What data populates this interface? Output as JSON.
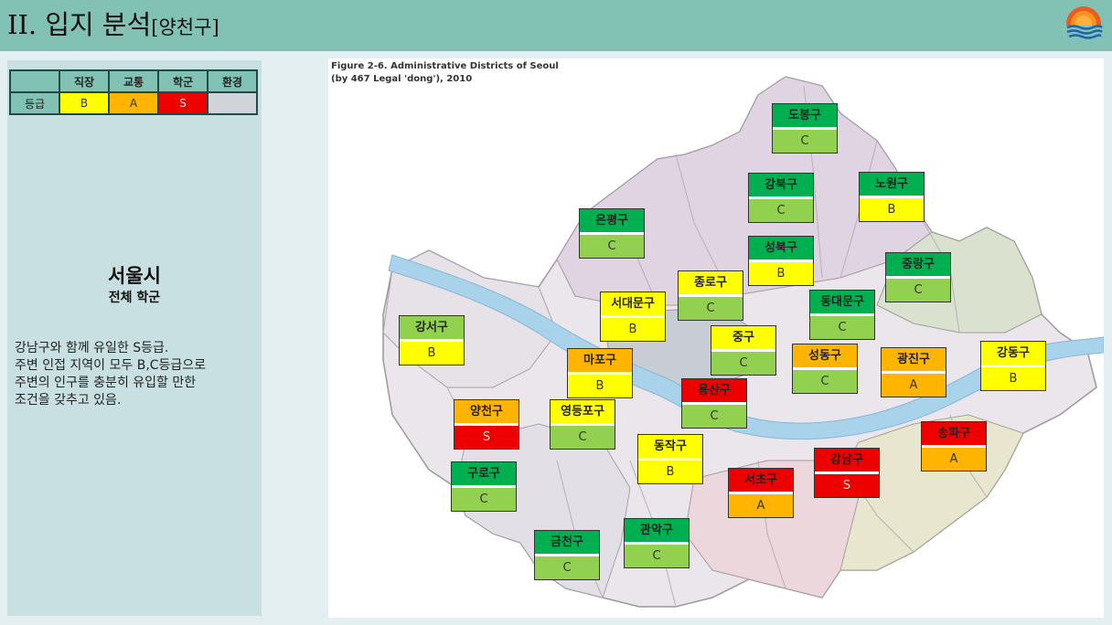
{
  "header": {
    "title_main": "II. 입지 분석",
    "title_sub": "[양천구]"
  },
  "colors": {
    "S": "#ee0000",
    "A": "#ffb400",
    "B": "#ffff00",
    "C": "#92d050",
    "G": "#00b050",
    "blank": "#d0d3d8"
  },
  "grade_table": {
    "headers": [
      "",
      "직장",
      "교통",
      "학군",
      "환경"
    ],
    "row_label": "등급",
    "values": [
      "B",
      "A",
      "S",
      ""
    ]
  },
  "left": {
    "city": "서울시",
    "subtitle": "전체 학군",
    "desc": [
      "강남구와 함께 유일한 S등급.",
      "주변 인접 지역이 모두 B,C등급으로",
      "주변의 인구를 충분히 유입할 만한",
      "조건을 갖추고 있음."
    ]
  },
  "map": {
    "caption": [
      "Figure 2-6. Administrative Districts of Seoul",
      "(by 467 Legal 'dong'), 2010"
    ]
  },
  "districts": [
    {
      "name": "도봉구",
      "grade": "C",
      "top": "G"
    },
    {
      "name": "강북구",
      "grade": "C",
      "top": "G"
    },
    {
      "name": "노원구",
      "grade": "B",
      "top": "G"
    },
    {
      "name": "은평구",
      "grade": "C",
      "top": "G"
    },
    {
      "name": "성북구",
      "grade": "B",
      "top": "G"
    },
    {
      "name": "중랑구",
      "grade": "C",
      "top": "G"
    },
    {
      "name": "종로구",
      "grade": "C",
      "top": "B"
    },
    {
      "name": "서대문구",
      "grade": "B",
      "top": "B"
    },
    {
      "name": "동대문구",
      "grade": "C",
      "top": "G"
    },
    {
      "name": "강서구",
      "grade": "B",
      "top": "C"
    },
    {
      "name": "중구",
      "grade": "C",
      "top": "B"
    },
    {
      "name": "마포구",
      "grade": "B",
      "top": "A"
    },
    {
      "name": "성동구",
      "grade": "C",
      "top": "A"
    },
    {
      "name": "광진구",
      "grade": "A",
      "top": "A"
    },
    {
      "name": "강동구",
      "grade": "B",
      "top": "B"
    },
    {
      "name": "용산구",
      "grade": "C",
      "top": "S"
    },
    {
      "name": "양천구",
      "grade": "S",
      "top": "A"
    },
    {
      "name": "영등포구",
      "grade": "C",
      "top": "B"
    },
    {
      "name": "송파구",
      "grade": "A",
      "top": "S"
    },
    {
      "name": "동작구",
      "grade": "B",
      "top": "B"
    },
    {
      "name": "강남구",
      "grade": "S",
      "top": "S"
    },
    {
      "name": "구로구",
      "grade": "C",
      "top": "G"
    },
    {
      "name": "서초구",
      "grade": "A",
      "top": "S"
    },
    {
      "name": "관악구",
      "grade": "C",
      "top": "G"
    },
    {
      "name": "금천구",
      "grade": "C",
      "top": "G"
    }
  ]
}
